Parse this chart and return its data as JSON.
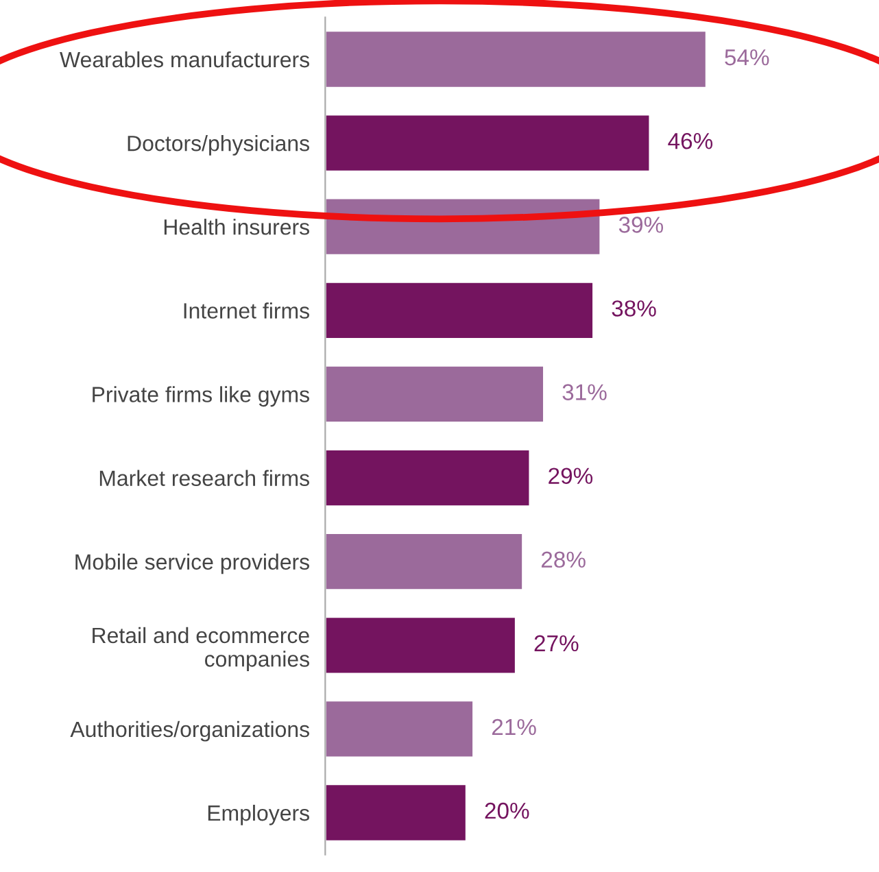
{
  "chart_data": {
    "type": "bar",
    "orientation": "horizontal",
    "categories": [
      "Wearables manufacturers",
      "Doctors/physicians",
      "Health insurers",
      "Internet firms",
      "Private firms like gyms",
      "Market research firms",
      "Mobile service providers",
      "Retail and ecommerce\ncompanies",
      "Authorities/organizations",
      "Employers"
    ],
    "values": [
      54,
      46,
      39,
      38,
      31,
      29,
      28,
      27,
      21,
      20
    ],
    "value_labels": [
      "54%",
      "46%",
      "39%",
      "38%",
      "31%",
      "29%",
      "28%",
      "27%",
      "21%",
      "20%"
    ],
    "colors": [
      "#9b6a9b",
      "#74145f",
      "#9b6a9b",
      "#74145f",
      "#9b6a9b",
      "#74145f",
      "#9b6a9b",
      "#74145f",
      "#9b6a9b",
      "#74145f"
    ],
    "grid": false,
    "legend": false
  }
}
